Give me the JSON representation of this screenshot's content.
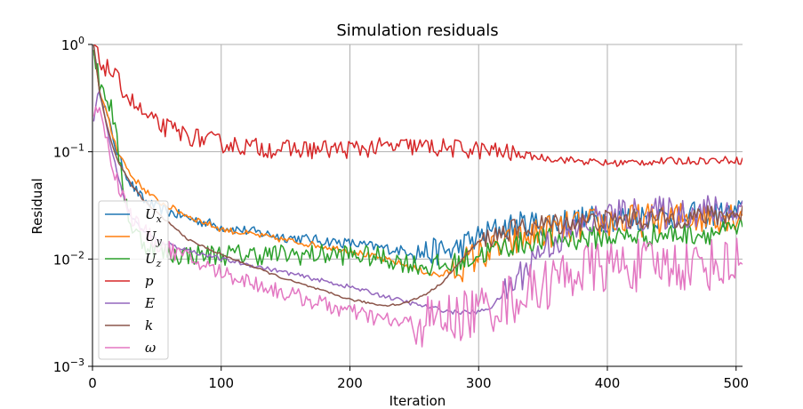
{
  "chart_data": {
    "type": "line",
    "title": "Simulation residuals",
    "xlabel": "Iteration",
    "ylabel": "Residual",
    "xlim": [
      0,
      505
    ],
    "ylim": [
      0.001,
      1
    ],
    "y_scale": "log",
    "grid": true,
    "legend_position": "lower-left",
    "x_ticks": [
      {
        "value": 0,
        "label": "0"
      },
      {
        "value": 100,
        "label": "100"
      },
      {
        "value": 200,
        "label": "200"
      },
      {
        "value": 300,
        "label": "300"
      },
      {
        "value": 400,
        "label": "400"
      },
      {
        "value": 500,
        "label": "500"
      }
    ],
    "y_ticks": [
      {
        "value": 0.001,
        "base": "10",
        "exp": "−3"
      },
      {
        "value": 0.01,
        "base": "10",
        "exp": "−2"
      },
      {
        "value": 0.1,
        "base": "10",
        "exp": "−1"
      },
      {
        "value": 1,
        "base": "10",
        "exp": "0"
      }
    ],
    "series": [
      {
        "name": "Ux",
        "symbol": "U",
        "sub": "x",
        "color": "#1f77b4",
        "noise": 0.05,
        "noise_from": 250,
        "noise_late": 0.13,
        "x": [
          1,
          5,
          10,
          15,
          20,
          30,
          40,
          50,
          75,
          100,
          150,
          200,
          240,
          260,
          280,
          300,
          320,
          350,
          400,
          450,
          500,
          505
        ],
        "y": [
          0.9,
          0.4,
          0.25,
          0.15,
          0.09,
          0.05,
          0.035,
          0.03,
          0.024,
          0.02,
          0.016,
          0.014,
          0.012,
          0.0115,
          0.012,
          0.016,
          0.02,
          0.022,
          0.024,
          0.025,
          0.026,
          0.028
        ]
      },
      {
        "name": "Uy",
        "symbol": "U",
        "sub": "y",
        "color": "#ff7f0e",
        "noise": 0.03,
        "noise_from": 280,
        "noise_late": 0.16,
        "x": [
          1,
          5,
          10,
          15,
          20,
          30,
          40,
          50,
          75,
          100,
          150,
          200,
          240,
          260,
          270,
          280,
          300,
          320,
          350,
          400,
          450,
          500,
          505
        ],
        "y": [
          0.9,
          0.4,
          0.25,
          0.15,
          0.1,
          0.06,
          0.045,
          0.035,
          0.025,
          0.019,
          0.015,
          0.012,
          0.009,
          0.0075,
          0.007,
          0.0078,
          0.011,
          0.013,
          0.018,
          0.022,
          0.024,
          0.026,
          0.028
        ]
      },
      {
        "name": "Uz",
        "symbol": "U",
        "sub": "z",
        "color": "#2ca02c",
        "noise": 0.1,
        "noise_from": 260,
        "noise_late": 0.11,
        "x": [
          1,
          5,
          10,
          15,
          20,
          25,
          30,
          40,
          60,
          100,
          150,
          200,
          220,
          240,
          260,
          280,
          300,
          320,
          350,
          400,
          450,
          500,
          505
        ],
        "y": [
          0.9,
          0.45,
          0.35,
          0.25,
          0.1,
          0.04,
          0.02,
          0.014,
          0.011,
          0.011,
          0.011,
          0.011,
          0.0105,
          0.0095,
          0.0085,
          0.0088,
          0.011,
          0.013,
          0.015,
          0.016,
          0.017,
          0.018,
          0.02
        ]
      },
      {
        "name": "p",
        "symbol": "p",
        "sub": "",
        "color": "#d62728",
        "noise": 0.09,
        "noise_from": 330,
        "noise_late": 0.035,
        "x": [
          1,
          5,
          10,
          15,
          20,
          30,
          40,
          50,
          75,
          100,
          125,
          150,
          175,
          200,
          225,
          250,
          275,
          300,
          320,
          350,
          400,
          450,
          500,
          505
        ],
        "y": [
          1,
          0.7,
          0.62,
          0.55,
          0.45,
          0.3,
          0.22,
          0.18,
          0.14,
          0.12,
          0.11,
          0.105,
          0.105,
          0.106,
          0.11,
          0.112,
          0.108,
          0.104,
          0.098,
          0.088,
          0.078,
          0.082,
          0.084,
          0.082
        ]
      },
      {
        "name": "E",
        "symbol": "E",
        "sub": "",
        "color": "#9467bd",
        "noise": 0.02,
        "noise_from": 320,
        "noise_late": 0.16,
        "x": [
          1,
          5,
          10,
          15,
          20,
          25,
          30,
          40,
          50,
          75,
          100,
          150,
          200,
          250,
          280,
          300,
          310,
          330,
          350,
          380,
          400,
          450,
          500,
          505
        ],
        "y": [
          0.2,
          0.4,
          0.2,
          0.1,
          0.06,
          0.035,
          0.025,
          0.018,
          0.015,
          0.012,
          0.01,
          0.0075,
          0.0055,
          0.0038,
          0.0032,
          0.0032,
          0.0036,
          0.0065,
          0.013,
          0.02,
          0.025,
          0.027,
          0.029,
          0.03
        ]
      },
      {
        "name": "k",
        "symbol": "k",
        "sub": "",
        "color": "#8c564b",
        "noise": 0.01,
        "noise_from": 300,
        "noise_late": 0.1,
        "x": [
          1,
          5,
          10,
          15,
          20,
          30,
          40,
          50,
          75,
          100,
          150,
          200,
          225,
          240,
          250,
          260,
          270,
          280,
          290,
          300,
          320,
          350,
          400,
          450,
          500,
          505
        ],
        "y": [
          1,
          0.4,
          0.2,
          0.12,
          0.08,
          0.05,
          0.035,
          0.027,
          0.015,
          0.011,
          0.0065,
          0.0042,
          0.0037,
          0.0038,
          0.0042,
          0.0048,
          0.0058,
          0.0078,
          0.011,
          0.0145,
          0.018,
          0.021,
          0.023,
          0.024,
          0.026,
          0.027
        ]
      },
      {
        "name": "ω",
        "symbol": "ω",
        "sub": "",
        "color": "#e377c2",
        "noise": 0.08,
        "noise_from": 250,
        "noise_late": 0.25,
        "x": [
          1,
          5,
          10,
          15,
          20,
          25,
          30,
          40,
          50,
          75,
          100,
          150,
          200,
          240,
          260,
          280,
          300,
          320,
          340,
          360,
          380,
          400,
          450,
          500,
          505
        ],
        "y": [
          0.2,
          0.3,
          0.15,
          0.08,
          0.05,
          0.035,
          0.025,
          0.018,
          0.014,
          0.01,
          0.0075,
          0.0048,
          0.0032,
          0.0025,
          0.0026,
          0.0028,
          0.0033,
          0.004,
          0.005,
          0.0065,
          0.008,
          0.0085,
          0.0088,
          0.009,
          0.012
        ]
      }
    ]
  }
}
